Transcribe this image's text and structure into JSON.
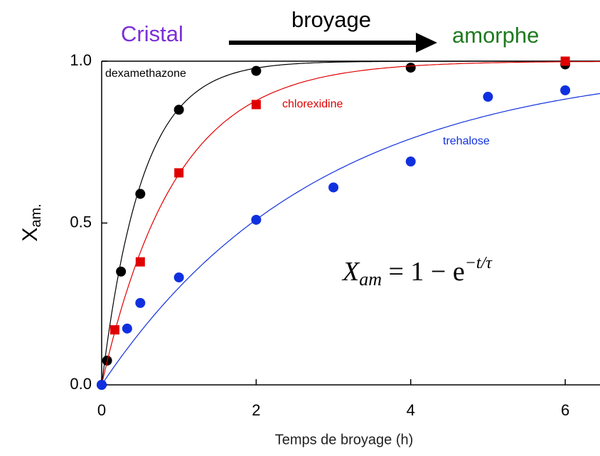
{
  "chart_data": {
    "type": "scatter",
    "header": {
      "left": "Cristal",
      "arrow": "broyage",
      "right": "amorphe"
    },
    "xlabel": "Temps de broyage (h)",
    "ylabel": {
      "text": "X",
      "sub": "am."
    },
    "equation": {
      "lhs": "X",
      "lhs_sub": "am",
      "rhs": " = 1 − e",
      "exp": "−t/τ"
    },
    "xlim": [
      0,
      6.45
    ],
    "ylim": [
      0,
      1
    ],
    "xticks": [
      0,
      2,
      4,
      6
    ],
    "yticks": [
      {
        "value": 0,
        "label": "0.0"
      },
      {
        "value": 0.5,
        "label": "0.5"
      },
      {
        "value": 1,
        "label": "1.0"
      }
    ],
    "series": [
      {
        "name": "dexamethazone",
        "color": "#000000",
        "marker": "circle",
        "tau": 0.52,
        "x": [
          0,
          0.07,
          0.25,
          0.5,
          1,
          2,
          4,
          6
        ],
        "values": [
          0,
          0.075,
          0.35,
          0.59,
          0.85,
          0.97,
          0.98,
          0.99
        ]
      },
      {
        "name": "chlorexidine",
        "color": "#e00000",
        "marker": "square",
        "tau": 0.95,
        "x": [
          0.17,
          0.5,
          1,
          2,
          6
        ],
        "values": [
          0.17,
          0.38,
          0.655,
          0.866,
          1.0
        ]
      },
      {
        "name": "trehalose",
        "color": "#1030e0",
        "marker": "circle",
        "tau": 2.8,
        "x": [
          0,
          0.33,
          0.5,
          1,
          2,
          3,
          4,
          5,
          6
        ],
        "values": [
          0,
          0.174,
          0.253,
          0.332,
          0.51,
          0.61,
          0.69,
          0.89,
          0.91
        ]
      }
    ]
  }
}
